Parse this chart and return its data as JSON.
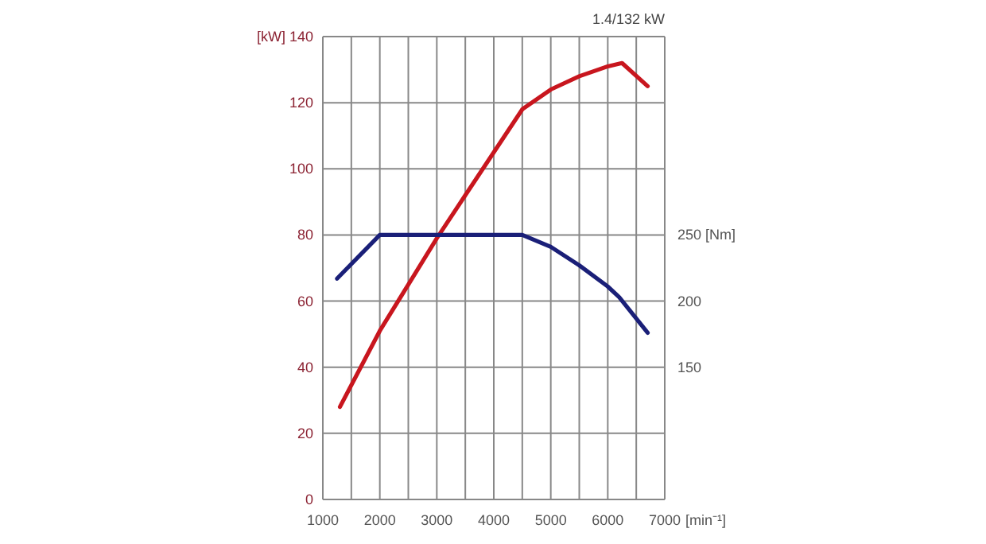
{
  "chart_data": {
    "type": "line",
    "title": "1.4/132 kW",
    "xlim": [
      1000,
      7000
    ],
    "xticks": [
      1000,
      {
        "value": 1500,
        "label": null
      },
      2000,
      {
        "value": 2500,
        "label": null
      },
      3000,
      {
        "value": 3500,
        "label": null
      },
      4000,
      {
        "value": 4500,
        "label": null
      },
      5000,
      {
        "value": 5500,
        "label": null
      },
      6000,
      {
        "value": 6500,
        "label": null
      },
      7000
    ],
    "xlabel": "[min⁻¹]",
    "ylim": [
      0,
      140
    ],
    "yticks": [
      0,
      20,
      40,
      60,
      80,
      100,
      120,
      {
        "value": 140,
        "label": "[kW] 140"
      }
    ],
    "y2lim": [
      50,
      400
    ],
    "y2ticks": [
      150,
      200,
      {
        "value": 250,
        "label": "250 [Nm]"
      }
    ],
    "grid": true,
    "line_style": "solid",
    "marker": "none",
    "series": [
      {
        "color": "#c8161e",
        "x": [
          1300,
          2000,
          2500,
          3000,
          3500,
          4000,
          4500,
          5000,
          5500,
          6000,
          6250,
          6700
        ],
        "values": [
          28,
          51,
          65,
          79,
          92,
          105,
          118,
          124,
          128,
          131,
          132,
          125
        ]
      },
      {
        "color": "#1a1f78",
        "axis": "y2",
        "x": [
          1250,
          2000,
          3000,
          4000,
          4500,
          5000,
          5500,
          6000,
          6200,
          6700
        ],
        "values": [
          217,
          250,
          250,
          250,
          250,
          241,
          227,
          211,
          203,
          176
        ]
      }
    ]
  }
}
